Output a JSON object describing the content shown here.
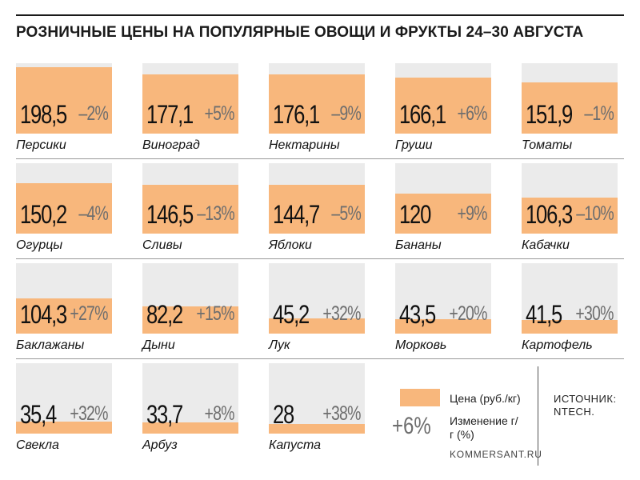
{
  "chart_data": {
    "type": "bar",
    "title": "РОЗНИЧНЫЕ ЦЕНЫ НА ПОПУЛЯРНЫЕ ОВОЩИ И ФРУКТЫ 24–30 АВГУСТА",
    "ylim": [
      0,
      210
    ],
    "items": [
      {
        "name": "Персики",
        "price": "198,5",
        "value": 198.5,
        "change": "–2%"
      },
      {
        "name": "Виноград",
        "price": "177,1",
        "value": 177.1,
        "change": "+5%"
      },
      {
        "name": "Нектарины",
        "price": "176,1",
        "value": 176.1,
        "change": "–9%"
      },
      {
        "name": "Груши",
        "price": "166,1",
        "value": 166.1,
        "change": "+6%"
      },
      {
        "name": "Томаты",
        "price": "151,9",
        "value": 151.9,
        "change": "–1%"
      },
      {
        "name": "Огурцы",
        "price": "150,2",
        "value": 150.2,
        "change": "–4%"
      },
      {
        "name": "Сливы",
        "price": "146,5",
        "value": 146.5,
        "change": "–13%"
      },
      {
        "name": "Яблоки",
        "price": "144,7",
        "value": 144.7,
        "change": "–5%"
      },
      {
        "name": "Бананы",
        "price": "120",
        "value": 120,
        "change": "+9%"
      },
      {
        "name": "Кабачки",
        "price": "106,3",
        "value": 106.3,
        "change": "–10%"
      },
      {
        "name": "Баклажаны",
        "price": "104,3",
        "value": 104.3,
        "change": "+27%"
      },
      {
        "name": "Дыни",
        "price": "82,2",
        "value": 82.2,
        "change": "+15%"
      },
      {
        "name": "Лук",
        "price": "45,2",
        "value": 45.2,
        "change": "+32%"
      },
      {
        "name": "Морковь",
        "price": "43,5",
        "value": 43.5,
        "change": "+20%"
      },
      {
        "name": "Картофель",
        "price": "41,5",
        "value": 41.5,
        "change": "+30%"
      },
      {
        "name": "Свекла",
        "price": "35,4",
        "value": 35.4,
        "change": "+32%"
      },
      {
        "name": "Арбуз",
        "price": "33,7",
        "value": 33.7,
        "change": "+8%"
      },
      {
        "name": "Капуста",
        "price": "28",
        "value": 28,
        "change": "+38%"
      }
    ]
  },
  "legend": {
    "price_label": "Цена (руб./кг)",
    "change_example": "+6%",
    "change_label": "Изменение г/г (%)",
    "site": "KOMMERSANT.RU"
  },
  "source": "ИСТОЧНИК: NTECH.",
  "colors": {
    "fill": "#f8b77c",
    "background": "#ebebeb",
    "change_text": "#6e6e6e"
  }
}
